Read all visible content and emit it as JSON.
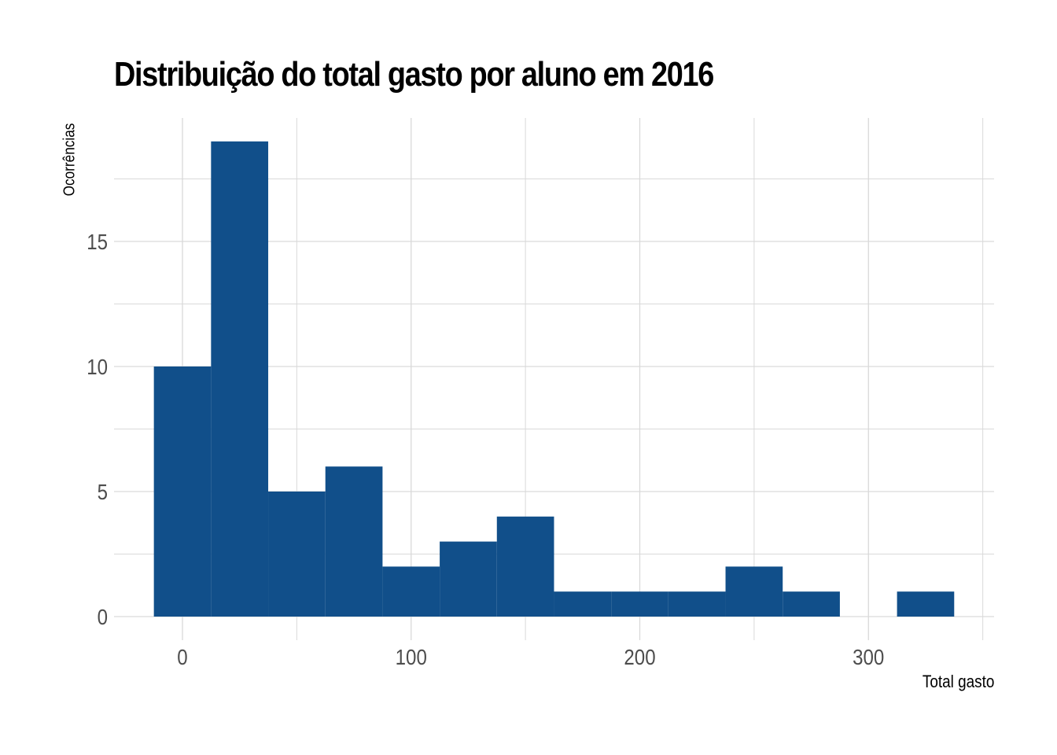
{
  "chart_data": {
    "type": "bar",
    "title": "Distribuição do total gasto por aluno em 2016",
    "xlabel": "Total gasto",
    "ylabel": "Ocorrências",
    "bin_width": 25,
    "bins": [
      {
        "x_start": -12.5,
        "x_end": 12.5,
        "count": 10
      },
      {
        "x_start": 12.5,
        "x_end": 37.5,
        "count": 19
      },
      {
        "x_start": 37.5,
        "x_end": 62.5,
        "count": 5
      },
      {
        "x_start": 62.5,
        "x_end": 87.5,
        "count": 6
      },
      {
        "x_start": 87.5,
        "x_end": 112.5,
        "count": 2
      },
      {
        "x_start": 112.5,
        "x_end": 137.5,
        "count": 3
      },
      {
        "x_start": 137.5,
        "x_end": 162.5,
        "count": 4
      },
      {
        "x_start": 162.5,
        "x_end": 187.5,
        "count": 1
      },
      {
        "x_start": 187.5,
        "x_end": 212.5,
        "count": 1
      },
      {
        "x_start": 212.5,
        "x_end": 237.5,
        "count": 1
      },
      {
        "x_start": 237.5,
        "x_end": 262.5,
        "count": 2
      },
      {
        "x_start": 262.5,
        "x_end": 287.5,
        "count": 1
      },
      {
        "x_start": 287.5,
        "x_end": 312.5,
        "count": 0
      },
      {
        "x_start": 312.5,
        "x_end": 337.5,
        "count": 1
      }
    ],
    "x_ticks": [
      0,
      100,
      200,
      300
    ],
    "y_ticks": [
      0,
      5,
      10,
      15
    ],
    "xlim": [
      -30,
      355
    ],
    "ylim": [
      -0.3,
      19.9
    ],
    "grid": true,
    "bar_color": "#114f8a",
    "grid_color": "#d9d9d9"
  }
}
